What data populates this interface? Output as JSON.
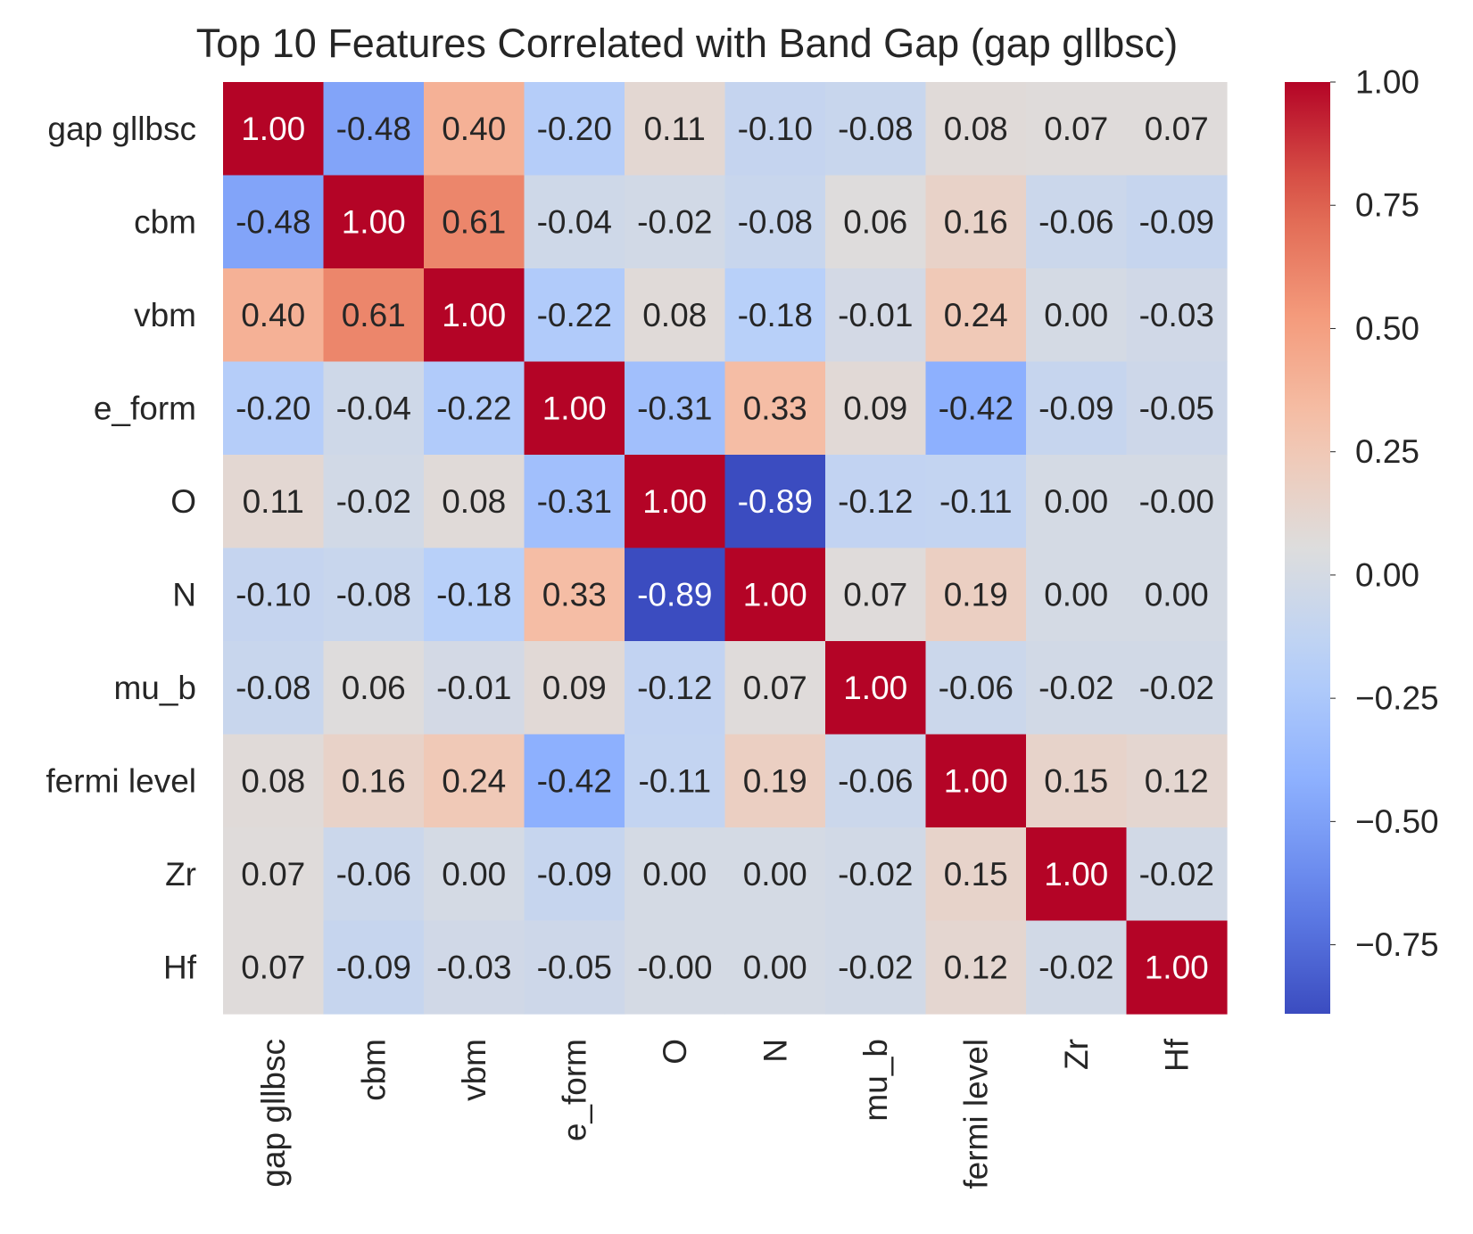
{
  "chart_data": {
    "type": "heatmap",
    "title": "Top 10 Features Correlated with Band Gap (gap gllbsc)",
    "xlabel": "",
    "ylabel": "",
    "colormap": "coolwarm",
    "vmin": -0.89,
    "vmax": 1.0,
    "x_categories": [
      "gap gllbsc",
      "cbm",
      "vbm",
      "e_form",
      "O",
      "N",
      "mu_b",
      "fermi level",
      "Zr",
      "Hf"
    ],
    "y_categories": [
      "gap gllbsc",
      "cbm",
      "vbm",
      "e_form",
      "O",
      "N",
      "mu_b",
      "fermi level",
      "Zr",
      "Hf"
    ],
    "values": [
      [
        1.0,
        -0.48,
        0.4,
        -0.2,
        0.11,
        -0.1,
        -0.08,
        0.08,
        0.07,
        0.07
      ],
      [
        -0.48,
        1.0,
        0.61,
        -0.04,
        -0.02,
        -0.08,
        0.06,
        0.16,
        -0.06,
        -0.09
      ],
      [
        0.4,
        0.61,
        1.0,
        -0.22,
        0.08,
        -0.18,
        -0.01,
        0.24,
        0.0,
        -0.03
      ],
      [
        -0.2,
        -0.04,
        -0.22,
        1.0,
        -0.31,
        0.33,
        0.09,
        -0.42,
        -0.09,
        -0.05
      ],
      [
        0.11,
        -0.02,
        0.08,
        -0.31,
        1.0,
        -0.89,
        -0.12,
        -0.11,
        0.0,
        -0.0
      ],
      [
        -0.1,
        -0.08,
        -0.18,
        0.33,
        -0.89,
        1.0,
        0.07,
        0.19,
        0.0,
        0.0
      ],
      [
        -0.08,
        0.06,
        -0.01,
        0.09,
        -0.12,
        0.07,
        1.0,
        -0.06,
        -0.02,
        -0.02
      ],
      [
        0.08,
        0.16,
        0.24,
        -0.42,
        -0.11,
        0.19,
        -0.06,
        1.0,
        0.15,
        0.12
      ],
      [
        0.07,
        -0.06,
        0.0,
        -0.09,
        0.0,
        0.0,
        -0.02,
        0.15,
        1.0,
        -0.02
      ],
      [
        0.07,
        -0.09,
        -0.03,
        -0.05,
        -0.0,
        0.0,
        -0.02,
        0.12,
        -0.02,
        1.0
      ]
    ],
    "cell_labels": [
      [
        "1.00",
        "-0.48",
        "0.40",
        "-0.20",
        "0.11",
        "-0.10",
        "-0.08",
        "0.08",
        "0.07",
        "0.07"
      ],
      [
        "-0.48",
        "1.00",
        "0.61",
        "-0.04",
        "-0.02",
        "-0.08",
        "0.06",
        "0.16",
        "-0.06",
        "-0.09"
      ],
      [
        "0.40",
        "0.61",
        "1.00",
        "-0.22",
        "0.08",
        "-0.18",
        "-0.01",
        "0.24",
        "0.00",
        "-0.03"
      ],
      [
        "-0.20",
        "-0.04",
        "-0.22",
        "1.00",
        "-0.31",
        "0.33",
        "0.09",
        "-0.42",
        "-0.09",
        "-0.05"
      ],
      [
        "0.11",
        "-0.02",
        "0.08",
        "-0.31",
        "1.00",
        "-0.89",
        "-0.12",
        "-0.11",
        "0.00",
        "-0.00"
      ],
      [
        "-0.10",
        "-0.08",
        "-0.18",
        "0.33",
        "-0.89",
        "1.00",
        "0.07",
        "0.19",
        "0.00",
        "0.00"
      ],
      [
        "-0.08",
        "0.06",
        "-0.01",
        "0.09",
        "-0.12",
        "0.07",
        "1.00",
        "-0.06",
        "-0.02",
        "-0.02"
      ],
      [
        "0.08",
        "0.16",
        "0.24",
        "-0.42",
        "-0.11",
        "0.19",
        "-0.06",
        "1.00",
        "0.15",
        "0.12"
      ],
      [
        "0.07",
        "-0.06",
        "0.00",
        "-0.09",
        "0.00",
        "0.00",
        "-0.02",
        "0.15",
        "1.00",
        "-0.02"
      ],
      [
        "0.07",
        "-0.09",
        "-0.03",
        "-0.05",
        "-0.00",
        "0.00",
        "-0.02",
        "0.12",
        "-0.02",
        "1.00"
      ]
    ],
    "colorbar": {
      "ticks": [
        1.0,
        0.75,
        0.5,
        0.25,
        0.0,
        -0.25,
        -0.5,
        -0.75
      ],
      "tick_labels": [
        "1.00",
        "0.75",
        "0.50",
        "0.25",
        "0.00",
        "−0.25",
        "−0.50",
        "−0.75"
      ]
    }
  }
}
